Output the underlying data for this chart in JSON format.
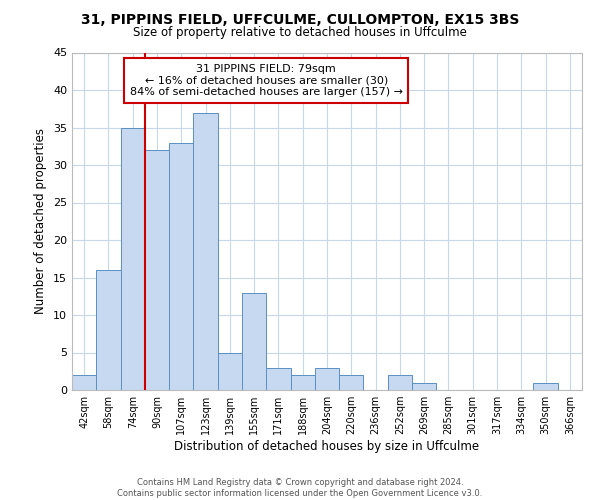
{
  "title_line1": "31, PIPPINS FIELD, UFFCULME, CULLOMPTON, EX15 3BS",
  "title_line2": "Size of property relative to detached houses in Uffculme",
  "xlabel": "Distribution of detached houses by size in Uffculme",
  "ylabel": "Number of detached properties",
  "bin_labels": [
    "42sqm",
    "58sqm",
    "74sqm",
    "90sqm",
    "107sqm",
    "123sqm",
    "139sqm",
    "155sqm",
    "171sqm",
    "188sqm",
    "204sqm",
    "220sqm",
    "236sqm",
    "252sqm",
    "269sqm",
    "285sqm",
    "301sqm",
    "317sqm",
    "334sqm",
    "350sqm",
    "366sqm"
  ],
  "bar_heights": [
    2,
    16,
    35,
    32,
    33,
    37,
    5,
    13,
    3,
    2,
    3,
    2,
    0,
    2,
    1,
    0,
    0,
    0,
    0,
    1,
    0
  ],
  "bar_color": "#c6d9f0",
  "bar_edge_color": "#5a8fc3",
  "vline_x": 2.5,
  "vline_color": "#cc0000",
  "annotation_title": "31 PIPPINS FIELD: 79sqm",
  "annotation_line1": "← 16% of detached houses are smaller (30)",
  "annotation_line2": "84% of semi-detached houses are larger (157) →",
  "annotation_box_color": "#ffffff",
  "annotation_box_edge": "#cc0000",
  "ylim": [
    0,
    45
  ],
  "yticks": [
    0,
    5,
    10,
    15,
    20,
    25,
    30,
    35,
    40,
    45
  ],
  "footer_line1": "Contains HM Land Registry data © Crown copyright and database right 2024.",
  "footer_line2": "Contains public sector information licensed under the Open Government Licence v3.0.",
  "background_color": "#ffffff",
  "grid_color": "#c8d8e8"
}
